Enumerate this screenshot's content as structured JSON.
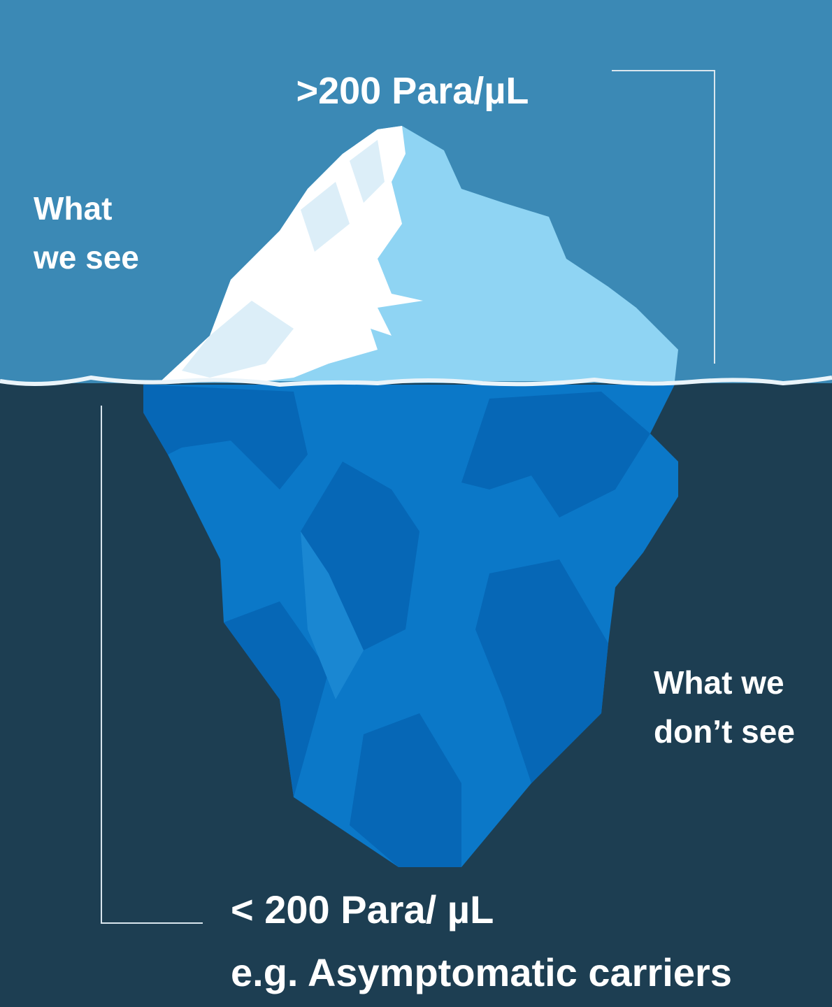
{
  "top": {
    "threshold": ">200 Para/µL",
    "label": [
      "What",
      "we see"
    ]
  },
  "bottom": {
    "label": [
      "What we",
      "don’t see"
    ],
    "threshold": "< 200 Para/ µL",
    "example": "e.g. Asymptomatic carriers"
  }
}
